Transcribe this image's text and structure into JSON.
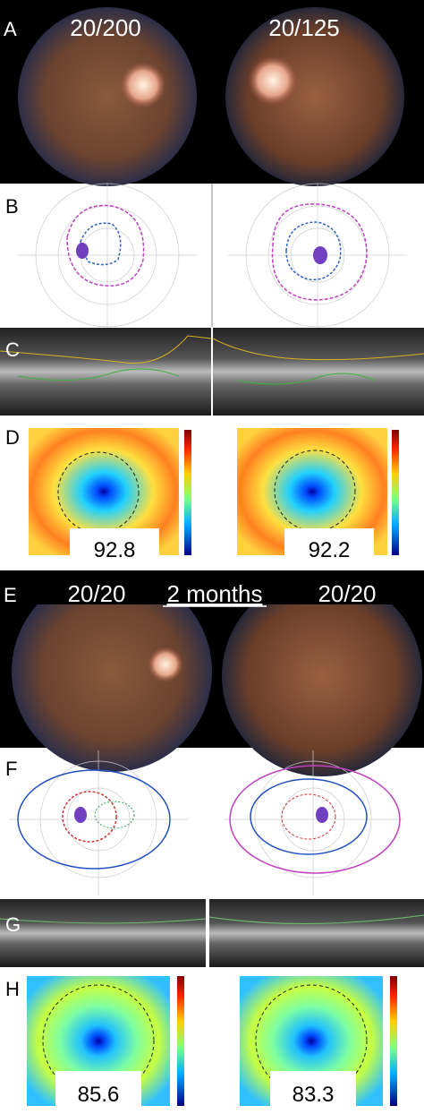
{
  "panels": [
    {
      "label": "A",
      "texts": [
        "20/200",
        "20/125"
      ]
    },
    {
      "label": "B"
    },
    {
      "label": "C"
    },
    {
      "label": "D",
      "values": [
        92.8,
        92.2
      ]
    },
    {
      "label": "E",
      "texts": [
        "20/20",
        "2 months",
        "20/20"
      ]
    },
    {
      "label": "F"
    },
    {
      "label": "G"
    },
    {
      "label": "H",
      "values": [
        85.6,
        83.3
      ]
    }
  ]
}
